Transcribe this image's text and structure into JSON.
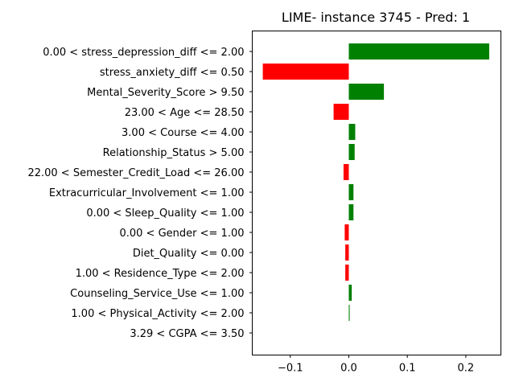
{
  "chart_data": {
    "type": "bar",
    "orientation": "horizontal",
    "title": "LIME- instance 3745 - Pred: 1",
    "xlabel": "",
    "ylabel": "",
    "xlim": [
      -0.165,
      0.26
    ],
    "xticks": [
      {
        "value": -0.1,
        "label": "−0.1"
      },
      {
        "value": 0.0,
        "label": "0.0"
      },
      {
        "value": 0.1,
        "label": "0.1"
      },
      {
        "value": 0.2,
        "label": "0.2"
      }
    ],
    "grid": false,
    "colors": {
      "positive": "#008000",
      "negative": "#ff0000"
    },
    "categories": [
      "0.00 < stress_depression_diff <= 2.00",
      "stress_anxiety_diff <= 0.50",
      "Mental_Severity_Score > 9.50",
      "23.00 < Age <= 28.50",
      "3.00 < Course <= 4.00",
      "Relationship_Status > 5.00",
      "22.00 < Semester_Credit_Load <= 26.00",
      "Extracurricular_Involvement <= 1.00",
      "0.00 < Sleep_Quality <= 1.00",
      "0.00 < Gender <= 1.00",
      "Diet_Quality <= 0.00",
      "1.00 < Residence_Type <= 2.00",
      "Counseling_Service_Use <= 1.00",
      "1.00 < Physical_Activity <= 2.00",
      "3.29 < CGPA <= 3.50"
    ],
    "values": [
      0.24,
      -0.147,
      0.06,
      -0.026,
      0.011,
      0.01,
      -0.009,
      0.008,
      0.008,
      -0.007,
      -0.006,
      -0.006,
      0.005,
      0.0015,
      0.0
    ]
  }
}
